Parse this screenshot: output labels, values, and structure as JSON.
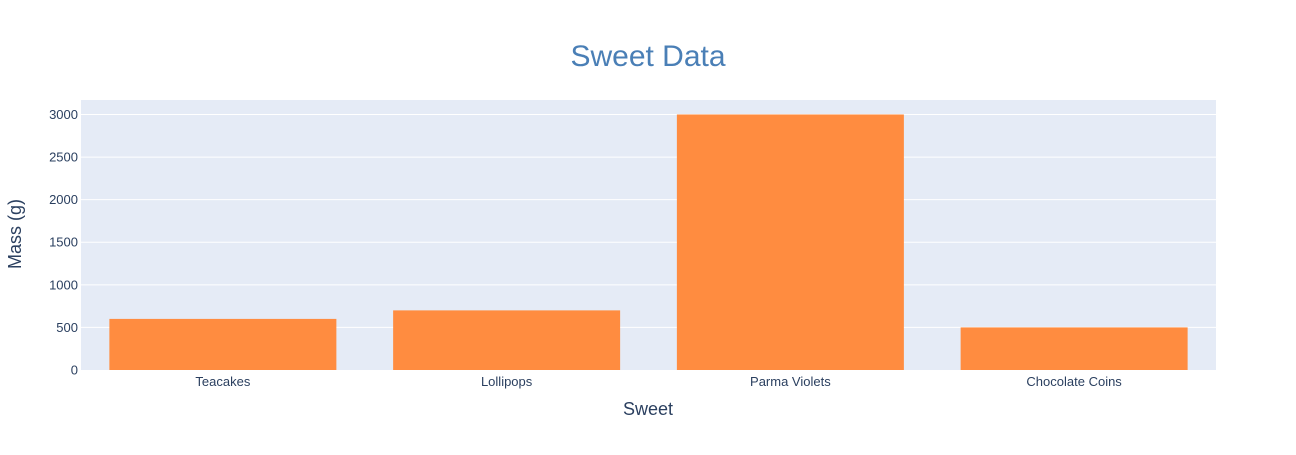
{
  "chart_data": {
    "type": "bar",
    "title": "Sweet Data",
    "xlabel": "Sweet",
    "ylabel": "Mass (g)",
    "categories": [
      "Teacakes",
      "Lollipops",
      "Parma Violets",
      "Chocolate Coins"
    ],
    "values": [
      600,
      700,
      3000,
      500
    ],
    "ylim": [
      0,
      3170
    ],
    "yticks": [
      0,
      500,
      1000,
      1500,
      2000,
      2500,
      3000
    ],
    "ytick_labels": [
      "0",
      "500",
      "1000",
      "1500",
      "2000",
      "2500",
      "3000"
    ],
    "grid": true,
    "legend": "none",
    "colors": {
      "bar": "#ff8c40",
      "plot_background": "#e5ebf6",
      "grid": "#ffffff",
      "title": "#4a7fb6",
      "text": "#2a3f5f"
    }
  }
}
